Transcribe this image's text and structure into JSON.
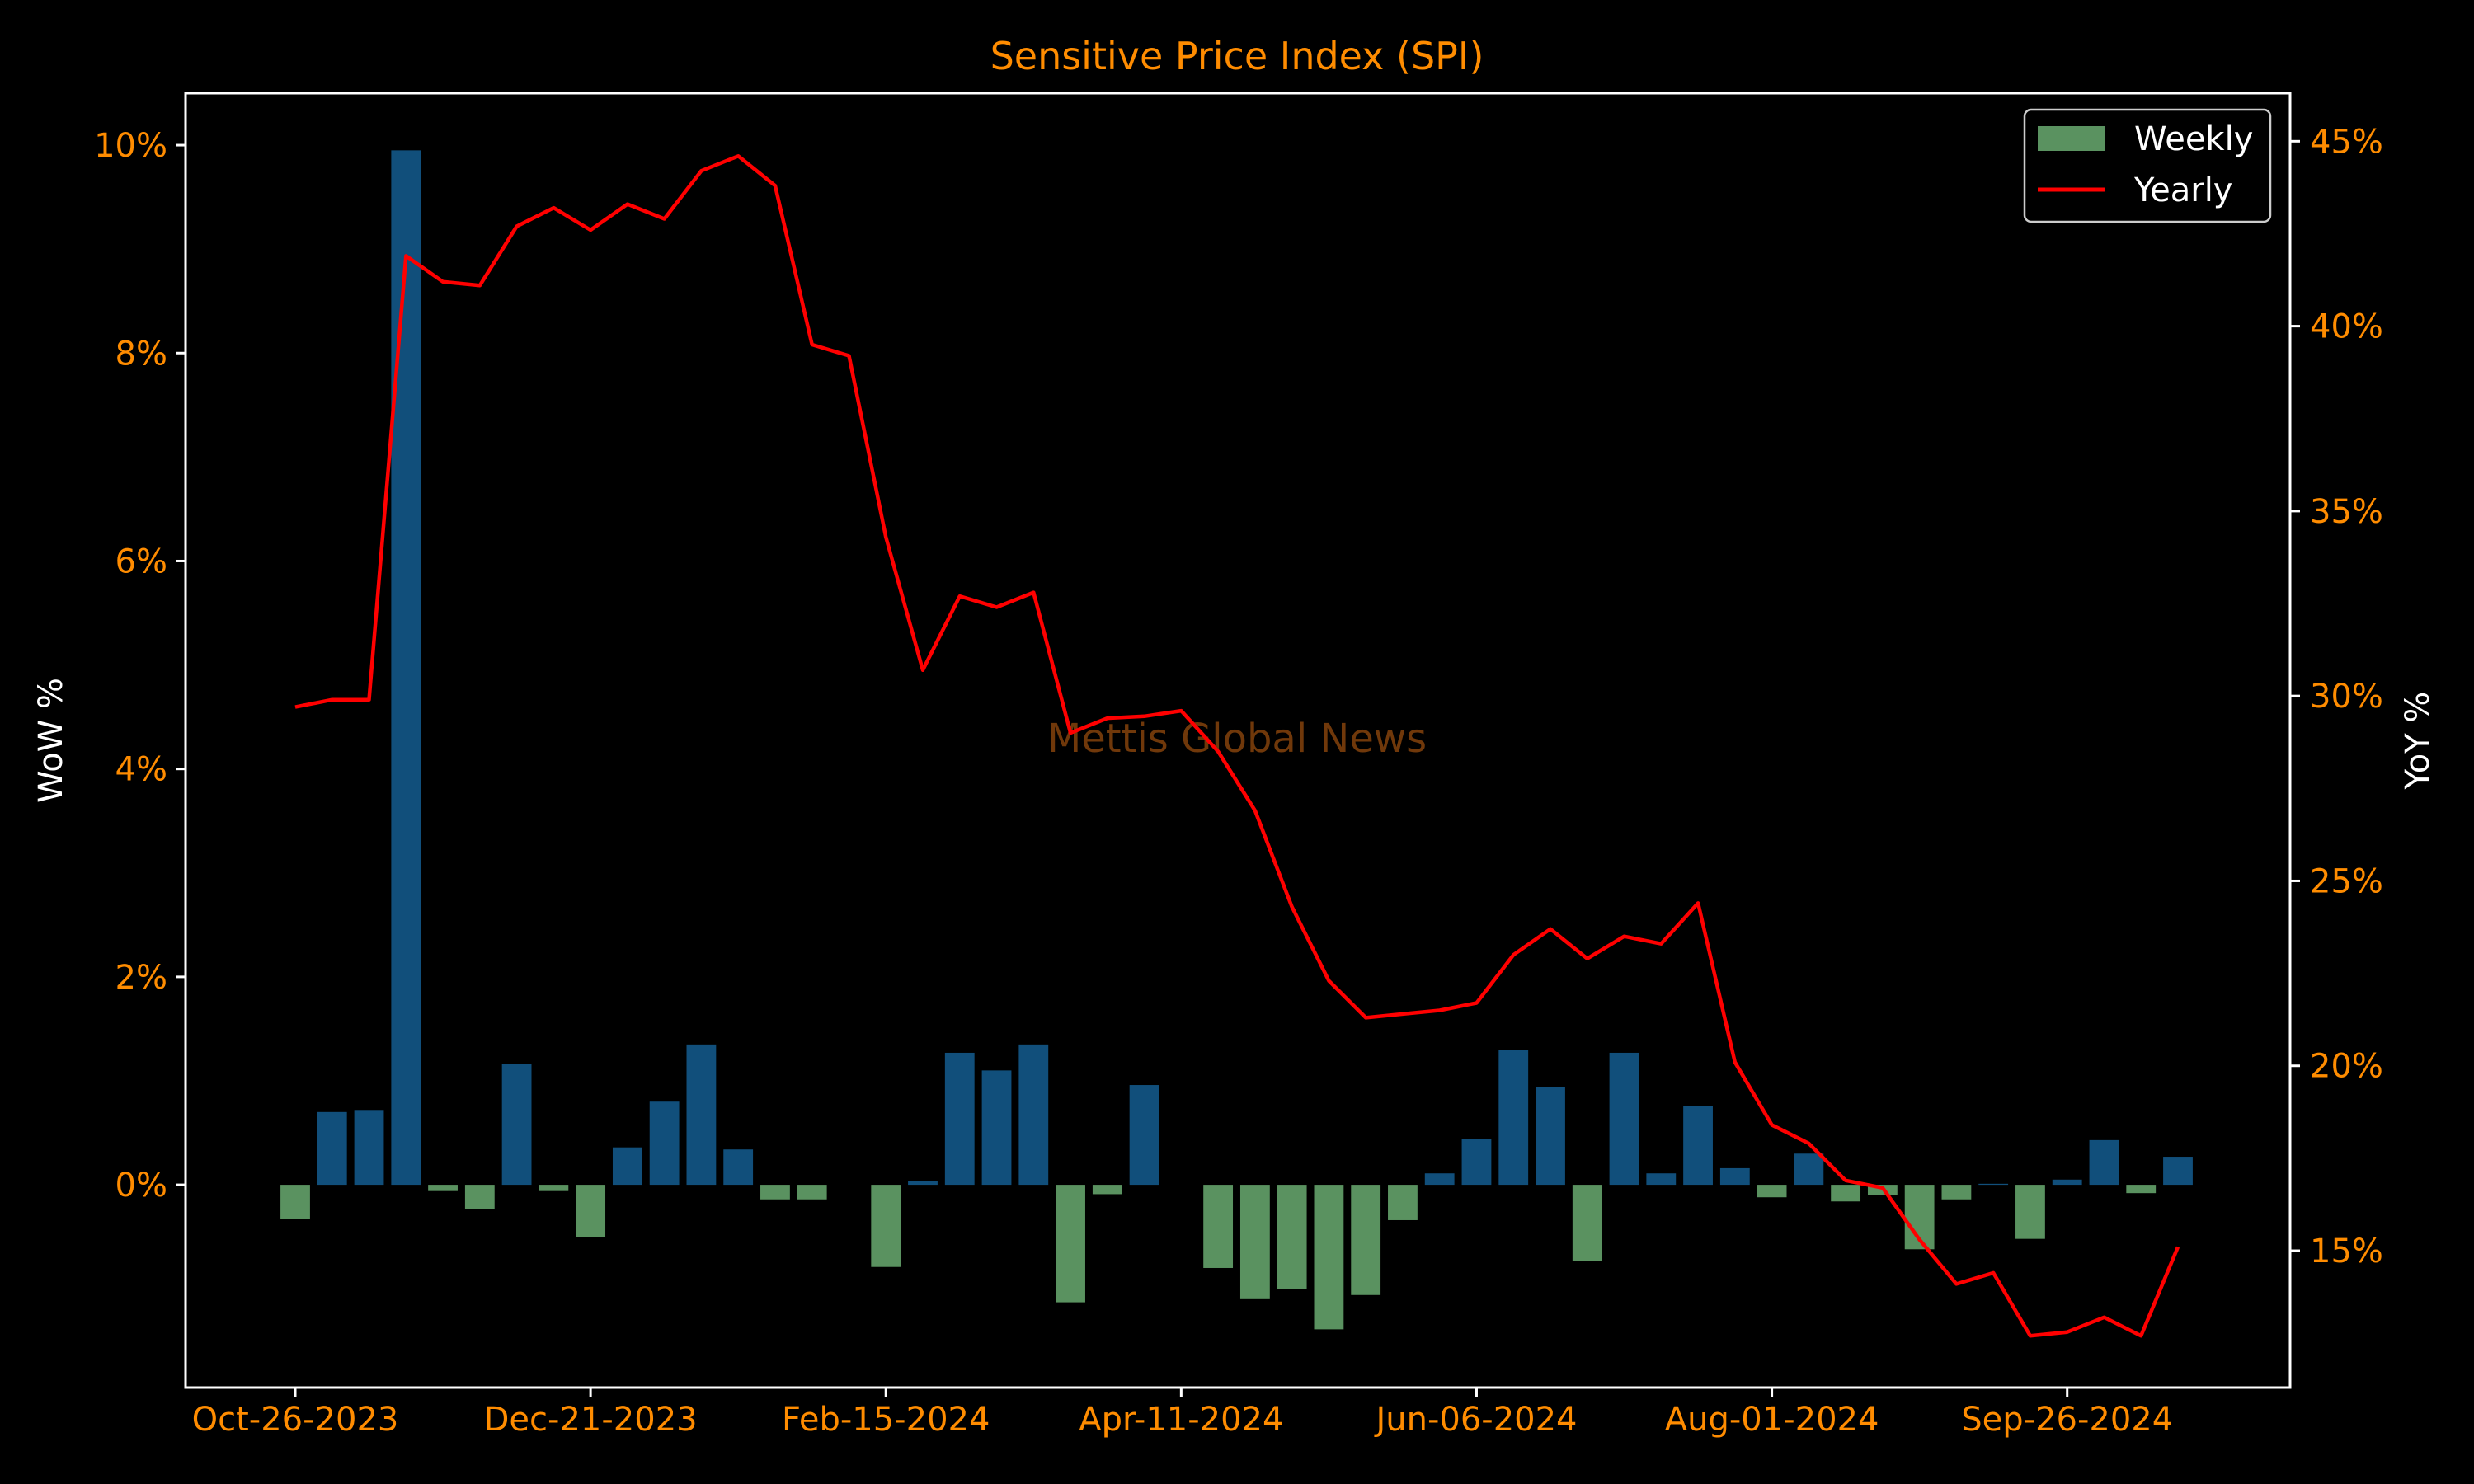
{
  "colors": {
    "background": "#000000",
    "frame": "#ffffff",
    "tick_text": "#ff8c00",
    "title": "#ff8c00",
    "positive_bar": "#114f7b",
    "negative_bar": "#5a9260",
    "yearly_line": "#ff0000",
    "watermark": "#8b4513"
  },
  "chart_data": {
    "type": "bar",
    "title": "Sensitive Price Index (SPI)",
    "watermark": "Mettis Global News",
    "ylabel_left": "WoW %",
    "ylabel_right": "YoY %",
    "xlabel": "",
    "x_tick_labels": [
      "Oct-26-2023",
      "Dec-21-2023",
      "Feb-15-2024",
      "Apr-11-2024",
      "Jun-06-2024",
      "Aug-01-2024",
      "Sep-26-2024"
    ],
    "x_tick_index": [
      0,
      8,
      16,
      24,
      32,
      40,
      48
    ],
    "left_axis": {
      "ylim": [
        -1.95,
        10.5
      ],
      "ticks": [
        0,
        2,
        4,
        6,
        8,
        10
      ],
      "tick_labels": [
        "0%",
        "2%",
        "4%",
        "6%",
        "8%",
        "10%"
      ]
    },
    "right_axis": {
      "ylim": [
        11.3,
        46.3
      ],
      "ticks": [
        15,
        20,
        25,
        30,
        35,
        40,
        45
      ],
      "tick_labels": [
        "15%",
        "20%",
        "25%",
        "30%",
        "35%",
        "40%",
        "45%"
      ]
    },
    "legend": {
      "position": "top-right",
      "entries": [
        "Weekly",
        "Yearly"
      ]
    },
    "grid": false,
    "series": [
      {
        "name": "Weekly",
        "kind": "bar",
        "axis": "left",
        "values": [
          -0.33,
          0.7,
          0.72,
          9.95,
          -0.06,
          -0.23,
          1.16,
          -0.06,
          -0.5,
          0.36,
          0.8,
          1.35,
          0.34,
          -0.14,
          -0.14,
          0.0,
          -0.79,
          0.04,
          1.27,
          1.1,
          1.35,
          -1.13,
          -0.09,
          0.96,
          0.0,
          -0.8,
          -1.1,
          -1.0,
          -1.39,
          -1.06,
          -0.34,
          0.11,
          0.44,
          1.3,
          0.94,
          -0.73,
          1.27,
          0.11,
          0.76,
          0.16,
          -0.12,
          0.3,
          -0.16,
          -0.1,
          -0.62,
          -0.14,
          0.01,
          -0.52,
          0.05,
          0.43,
          -0.08,
          0.27
        ]
      },
      {
        "name": "Yearly",
        "kind": "line",
        "axis": "right",
        "values": [
          29.7,
          29.9,
          29.9,
          41.9,
          41.2,
          41.1,
          42.7,
          43.2,
          42.6,
          43.3,
          42.9,
          44.2,
          44.6,
          43.8,
          39.5,
          39.2,
          34.3,
          30.7,
          32.7,
          32.4,
          32.8,
          29.0,
          29.4,
          29.45,
          29.6,
          28.5,
          26.9,
          24.3,
          22.3,
          21.3,
          21.4,
          21.5,
          21.7,
          23.0,
          23.7,
          22.9,
          23.5,
          23.3,
          24.4,
          20.1,
          18.4,
          17.9,
          16.9,
          16.7,
          15.3,
          14.1,
          14.4,
          12.7,
          12.8,
          13.2,
          12.7,
          15.1
        ]
      }
    ]
  }
}
